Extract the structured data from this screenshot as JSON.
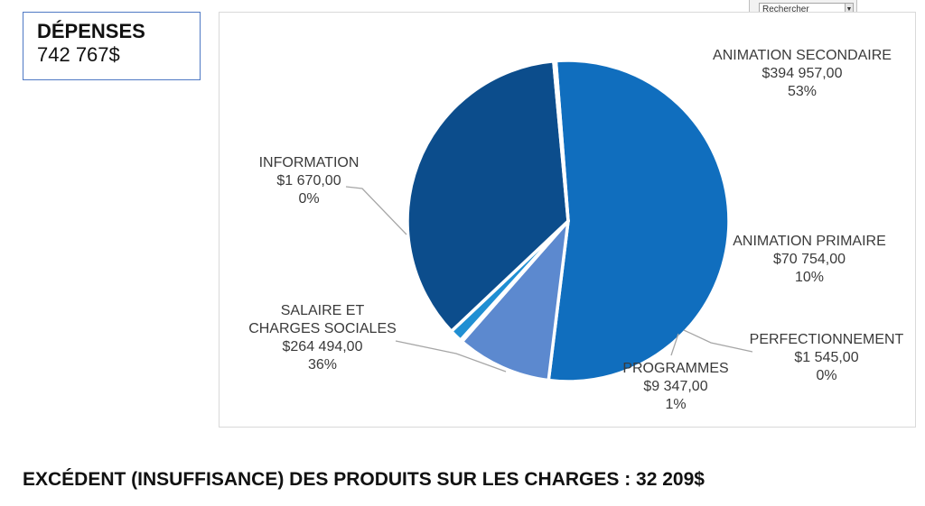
{
  "kpi": {
    "title": "DÉPENSES",
    "value": "742 767$"
  },
  "search": {
    "placeholder": "Rechercher"
  },
  "footer": {
    "text": "EXCÉDENT (INSUFFISANCE) DES PRODUITS SUR LES CHARGES : 32 209$"
  },
  "chart_data": {
    "type": "pie",
    "title": "",
    "slices": [
      {
        "name": "ANIMATION SECONDAIRE",
        "lines": [
          "ANIMATION SECONDAIRE"
        ],
        "amount": "$394 957,00",
        "percent": "53%",
        "value": 394957,
        "color": "#106ebe"
      },
      {
        "name": "ANIMATION PRIMAIRE",
        "lines": [
          "ANIMATION PRIMAIRE"
        ],
        "amount": "$70 754,00",
        "percent": "10%",
        "value": 70754,
        "color": "#5c89cf"
      },
      {
        "name": "PERFECTIONNEMENT",
        "lines": [
          "PERFECTIONNEMENT"
        ],
        "amount": "$1 545,00",
        "percent": "0%",
        "value": 1545,
        "color": "#2e6fc2"
      },
      {
        "name": "PROGRAMMES",
        "lines": [
          "PROGRAMMES"
        ],
        "amount": "$9 347,00",
        "percent": "1%",
        "value": 9347,
        "color": "#1f8fd3"
      },
      {
        "name": "SALAIRE ET CHARGES SOCIALES",
        "lines": [
          "SALAIRE ET",
          "CHARGES SOCIALES"
        ],
        "amount": "$264 494,00",
        "percent": "36%",
        "value": 264494,
        "color": "#0c4d8c"
      },
      {
        "name": "INFORMATION",
        "lines": [
          "INFORMATION"
        ],
        "amount": "$1 670,00",
        "percent": "0%",
        "value": 1670,
        "color": "#3f78c8"
      }
    ],
    "legend": "none"
  }
}
